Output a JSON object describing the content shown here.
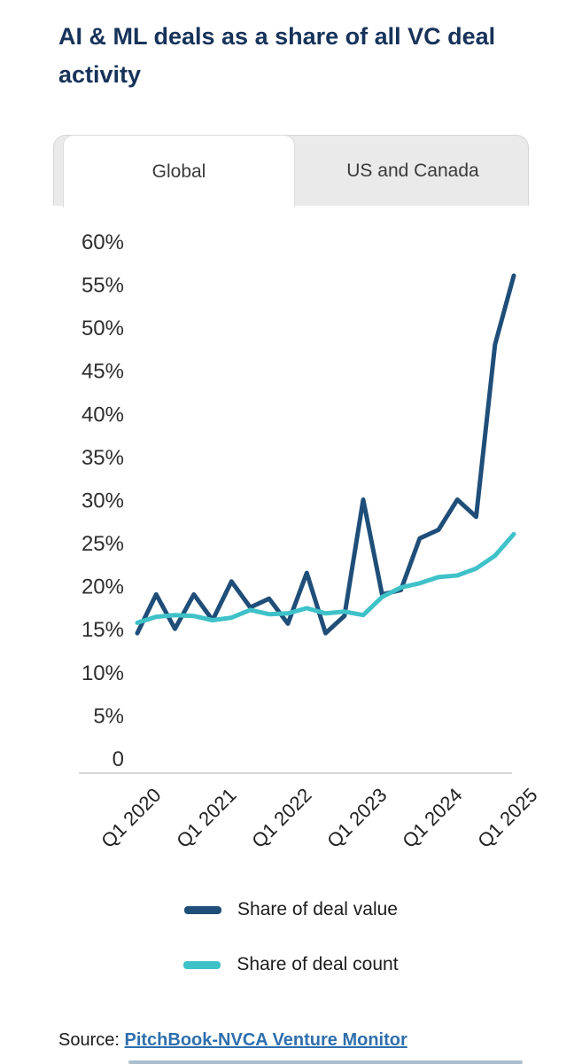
{
  "header": {
    "title": "AI & ML deals as a share of all VC deal activity"
  },
  "tabs": {
    "items": [
      {
        "label": "Global",
        "active": true
      },
      {
        "label": "US and Canada",
        "active": false
      }
    ]
  },
  "chart_data": {
    "type": "line",
    "title": "AI & ML deals as a share of all VC deal activity",
    "x": [
      "Q1 2020",
      "Q2 2020",
      "Q3 2020",
      "Q4 2020",
      "Q1 2021",
      "Q2 2021",
      "Q3 2021",
      "Q4 2021",
      "Q1 2022",
      "Q2 2022",
      "Q3 2022",
      "Q4 2022",
      "Q1 2023",
      "Q2 2023",
      "Q3 2023",
      "Q4 2023",
      "Q1 2024",
      "Q2 2024",
      "Q3 2024",
      "Q4 2024",
      "Q1 2025"
    ],
    "series": [
      {
        "name": "Share of deal value",
        "color": "#1f4e79",
        "values": [
          14.5,
          19,
          15,
          19,
          16,
          20.5,
          17.5,
          18.5,
          15.6,
          21.5,
          14.5,
          16.5,
          30,
          19,
          19.5,
          25.5,
          26.5,
          30,
          28,
          48,
          56
        ]
      },
      {
        "name": "Share of deal count",
        "color": "#3fc1c8",
        "values": [
          15.7,
          16.4,
          16.6,
          16.5,
          16,
          16.3,
          17.2,
          16.7,
          16.8,
          17.4,
          16.8,
          17,
          16.6,
          18.7,
          19.8,
          20.3,
          21,
          21.2,
          22,
          23.5,
          26
        ]
      }
    ],
    "xlabel": "",
    "ylabel": "",
    "ylim": [
      0,
      60
    ],
    "grid": false,
    "legend_position": "bottom",
    "y_ticks": [
      {
        "value": 60,
        "label": "60%"
      },
      {
        "value": 55,
        "label": "55%"
      },
      {
        "value": 50,
        "label": "50%"
      },
      {
        "value": 45,
        "label": "45%"
      },
      {
        "value": 40,
        "label": "40%"
      },
      {
        "value": 35,
        "label": "35%"
      },
      {
        "value": 30,
        "label": "30%"
      },
      {
        "value": 25,
        "label": "25%"
      },
      {
        "value": 20,
        "label": "20%"
      },
      {
        "value": 15,
        "label": "15%"
      },
      {
        "value": 10,
        "label": "10%"
      },
      {
        "value": 5,
        "label": "5%"
      },
      {
        "value": 0,
        "label": "0"
      }
    ],
    "x_ticks": [
      {
        "index": 0,
        "label": "Q1 2020"
      },
      {
        "index": 4,
        "label": "Q1 2021"
      },
      {
        "index": 8,
        "label": "Q1 2022"
      },
      {
        "index": 12,
        "label": "Q1 2023"
      },
      {
        "index": 16,
        "label": "Q1 2024"
      },
      {
        "index": 20,
        "label": "Q1 2025"
      }
    ]
  },
  "source": {
    "prefix": "Source:",
    "link_text": "PitchBook-NVCA Venture Monitor",
    "link_color": "#2e6fad"
  },
  "colors": {
    "title": "#17335a",
    "axis_text": "#2e2e2e",
    "axis_line": "#c9c9c9",
    "tab_bg": "#eaeaea"
  }
}
